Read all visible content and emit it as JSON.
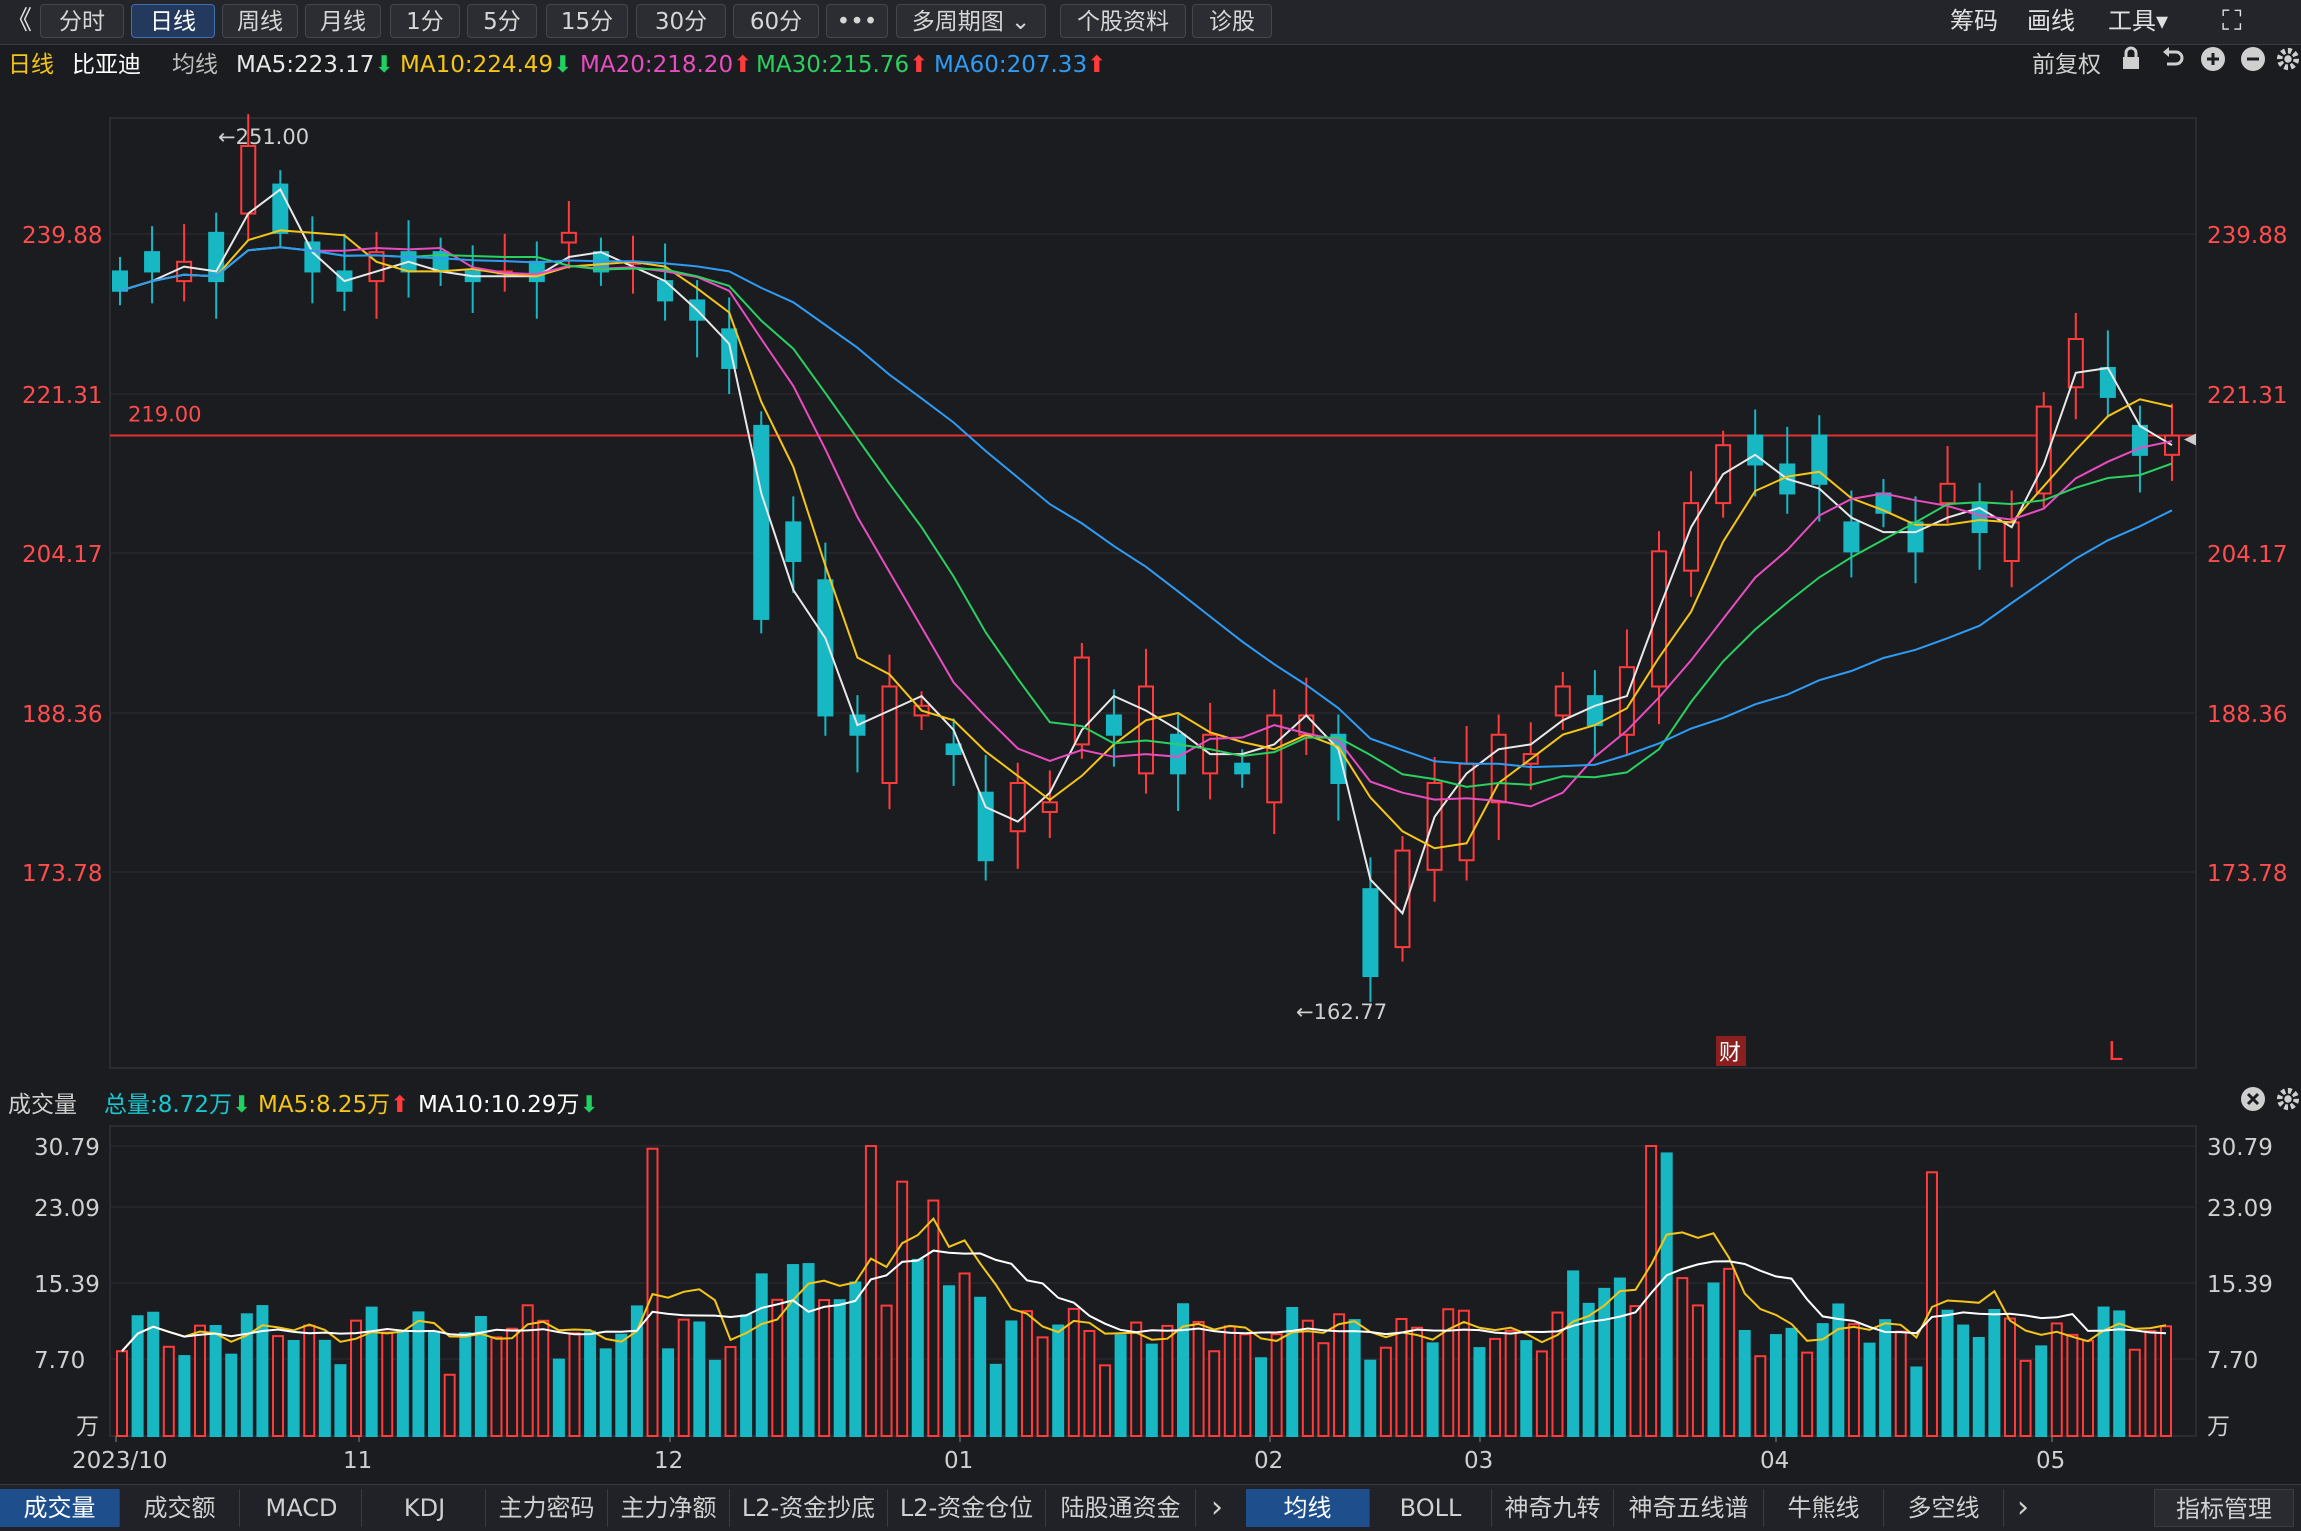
{
  "toolbar": {
    "back_glyph": "《",
    "tabs": [
      "分时",
      "日线",
      "周线",
      "月线",
      "1分",
      "5分",
      "15分",
      "30分",
      "60分",
      "•••",
      "多周期图 ⌄",
      "个股资料",
      "诊股"
    ],
    "active_tab": 1,
    "right": [
      "筹码",
      "画线",
      "工具▾"
    ],
    "fullscreen_glyph": "⛶"
  },
  "ma_header": {
    "period": "日线",
    "stock": "比亚迪",
    "label": "均线",
    "items": [
      {
        "text": "MA5:223.17",
        "arrow": "⬇",
        "color": "#e8e8e8",
        "arrow_color": "#20d060"
      },
      {
        "text": "MA10:224.49",
        "arrow": "⬇",
        "color": "#f5c518",
        "arrow_color": "#20d060"
      },
      {
        "text": "MA20:218.20",
        "arrow": "⬆",
        "color": "#e84dc0",
        "arrow_color": "#ff3b3b"
      },
      {
        "text": "MA30:215.76",
        "arrow": "⬆",
        "color": "#2ad060",
        "arrow_color": "#ff3b3b"
      },
      {
        "text": "MA60:207.33",
        "arrow": "⬆",
        "color": "#2e9cf5",
        "arrow_color": "#ff3b3b"
      }
    ],
    "right_label": "前复权",
    "right_icons": [
      "lock-icon",
      "undo-icon",
      "zoom-in-icon",
      "zoom-out-icon",
      "gear-icon"
    ]
  },
  "price_chart": {
    "y_ticks": [
      "239.88",
      "221.31",
      "204.17",
      "188.36",
      "173.78"
    ],
    "high_label": "←251.00",
    "low_label": "←162.77",
    "hline_label": "219.00",
    "badge_cai": "财",
    "badge_l": "L"
  },
  "volume_header": {
    "title": "成交量",
    "total": "总量:8.72万",
    "total_arrow": "⬇",
    "ma5": "MA5:8.25万",
    "ma5_arrow": "⬆",
    "ma10": "MA10:10.29万",
    "ma10_arrow": "⬇"
  },
  "volume_chart": {
    "y_ticks": [
      "30.79",
      "23.09",
      "15.39",
      "7.70"
    ],
    "unit": "万"
  },
  "x_axis": [
    "2023/10",
    "11",
    "12",
    "01",
    "02",
    "03",
    "04",
    "05"
  ],
  "bottom_tabs_left": [
    "成交量",
    "成交额",
    "MACD",
    "KDJ",
    "主力密码",
    "主力净额",
    "L2-资金抄底",
    "L2-资金仓位",
    "陆股通资金"
  ],
  "bottom_tabs_right": [
    "均线",
    "BOLL",
    "神奇九转",
    "神奇五线谱",
    "牛熊线",
    "多空线"
  ],
  "bottom_more": "›",
  "bottom_manage": "指标管理",
  "chart_data": {
    "type": "candlestick",
    "ohlc_open_close_samples": [
      [
        236,
        234
      ],
      [
        238,
        236
      ],
      [
        235,
        237
      ],
      [
        240,
        235
      ],
      [
        242,
        249
      ],
      [
        245,
        240
      ],
      [
        239,
        236
      ],
      [
        236,
        234
      ],
      [
        235,
        238
      ],
      [
        238,
        236
      ],
      [
        238,
        236
      ],
      [
        236,
        235
      ],
      [
        236,
        236
      ],
      [
        237,
        235
      ],
      [
        239,
        240
      ],
      [
        238,
        236
      ],
      [
        237,
        237
      ],
      [
        235,
        233
      ],
      [
        233,
        231
      ],
      [
        230,
        226
      ],
      [
        220,
        200
      ],
      [
        210,
        206
      ],
      [
        204,
        190
      ],
      [
        190,
        188
      ],
      [
        183,
        193
      ],
      [
        190,
        191
      ],
      [
        187,
        186
      ],
      [
        182,
        175
      ],
      [
        178,
        183
      ],
      [
        180,
        181
      ],
      [
        187,
        196
      ],
      [
        190,
        188
      ],
      [
        184,
        193
      ],
      [
        188,
        184
      ],
      [
        184,
        188
      ],
      [
        185,
        184
      ],
      [
        181,
        190
      ],
      [
        188,
        190
      ],
      [
        188,
        183
      ],
      [
        172,
        163
      ],
      [
        166,
        176
      ],
      [
        174,
        183
      ],
      [
        175,
        185
      ],
      [
        181,
        188
      ],
      [
        185,
        186
      ],
      [
        190,
        193
      ],
      [
        192,
        189
      ],
      [
        188,
        195
      ],
      [
        193,
        207
      ],
      [
        205,
        212
      ],
      [
        212,
        218
      ],
      [
        219,
        216
      ],
      [
        216,
        213
      ],
      [
        219,
        214
      ],
      [
        210,
        207
      ],
      [
        213,
        211
      ],
      [
        210,
        207
      ],
      [
        212,
        214
      ],
      [
        212,
        209
      ],
      [
        206,
        210
      ],
      [
        213,
        222
      ],
      [
        224,
        229
      ],
      [
        226,
        223
      ],
      [
        220,
        217
      ],
      [
        217,
        219
      ]
    ],
    "ma5_end": 223.17,
    "ma10_end": 224.49,
    "ma20_end": 218.2,
    "ma30_end": 215.76,
    "ma60_end": 207.33,
    "price_high": 251.0,
    "price_low": 162.77,
    "reference_line": 219.0,
    "volume_total_last": 8.72,
    "volume_ma5": 8.25,
    "volume_ma10": 10.29
  }
}
